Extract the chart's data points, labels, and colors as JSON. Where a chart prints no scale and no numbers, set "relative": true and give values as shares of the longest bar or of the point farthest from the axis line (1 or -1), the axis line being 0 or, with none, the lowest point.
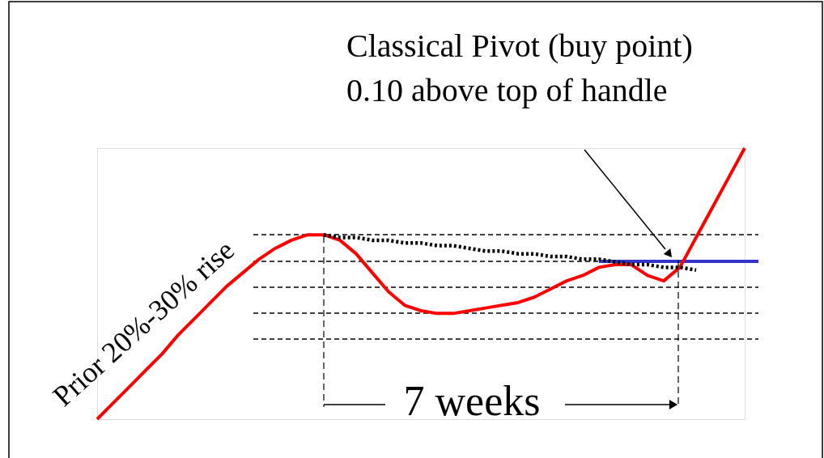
{
  "chart_data": {
    "type": "line",
    "relative": true,
    "categories": [
      null,
      null,
      null,
      null,
      null,
      null,
      null,
      null,
      null,
      null,
      null,
      null,
      null,
      null,
      null,
      null,
      null,
      null,
      null,
      null,
      null,
      null,
      null,
      null,
      null,
      null,
      null,
      null,
      null,
      null,
      null,
      null,
      null,
      null,
      null,
      null,
      null,
      null,
      null,
      null,
      null
    ],
    "series": [
      {
        "color": "#ff0000",
        "values": [
          0,
          0.06,
          0.12,
          0.18,
          0.24,
          0.31,
          0.37,
          0.43,
          0.49,
          0.54,
          0.59,
          0.63,
          0.66,
          0.68,
          0.68,
          0.66,
          0.61,
          0.54,
          0.47,
          0.42,
          0.4,
          0.39,
          0.39,
          0.4,
          0.41,
          0.42,
          0.43,
          0.45,
          0.48,
          0.51,
          0.53,
          0.56,
          0.57,
          0.57,
          0.53,
          0.51,
          0.56,
          0.67,
          0.78,
          0.89,
          1.0
        ]
      },
      {
        "color": "#000000",
        "line_style": "dotted",
        "values": [
          null,
          null,
          null,
          null,
          null,
          null,
          null,
          null,
          null,
          null,
          null,
          null,
          null,
          null,
          0.68,
          0.67,
          0.67,
          0.66,
          0.66,
          0.65,
          0.65,
          0.64,
          0.64,
          0.63,
          0.62,
          0.62,
          0.61,
          0.61,
          0.6,
          0.6,
          0.59,
          0.59,
          0.58,
          0.57,
          0.57,
          0.56,
          0.56,
          0.55,
          null,
          null,
          null
        ]
      }
    ],
    "annotations": [
      "Classical Pivot (buy point)\n0.10 above top of handle",
      "Prior 20%-30% rise",
      "7 weeks"
    ]
  }
}
